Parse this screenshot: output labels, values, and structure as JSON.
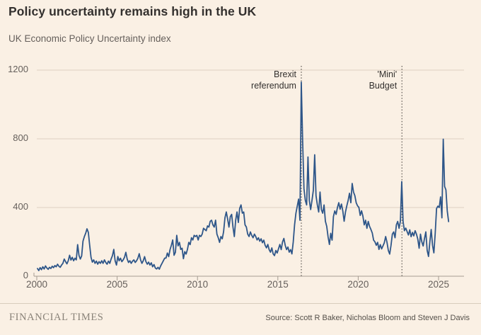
{
  "header": {
    "title": "Policy uncertainty remains high in the UK",
    "subtitle": "UK Economic Policy Uncertainty index"
  },
  "footer": {
    "brand": "FINANCIAL TIMES",
    "source": "Source: Scott R Baker, Nicholas Bloom and Steven J Davis"
  },
  "colors": {
    "background": "#faf0e4",
    "line": "#2e5689",
    "gridline": "#ddd1c2",
    "axis": "#a59c92",
    "annotation_line": "#3a3632",
    "text_primary": "#33302e",
    "text_secondary": "#66605c"
  },
  "chart_data": {
    "type": "line",
    "title": "Policy uncertainty remains high in the UK",
    "subtitle": "UK Economic Policy Uncertainty index",
    "xlabel": "",
    "ylabel": "",
    "ylim": [
      0,
      1200
    ],
    "yticks": [
      0,
      400,
      800,
      1200
    ],
    "xticks": [
      2000,
      2005,
      2010,
      2015,
      2020,
      2025
    ],
    "grid": "horizontal-only",
    "legend": "none",
    "x_start_year": 2000,
    "x_months_per_point": 1,
    "annotations": [
      {
        "label_lines": [
          "Brexit",
          "referendum"
        ],
        "x_year": 2016.46
      },
      {
        "label_lines": [
          "'Mini'",
          "Budget"
        ],
        "x_year": 2022.72
      }
    ],
    "series": [
      {
        "name": "UK Economic Policy Uncertainty index",
        "color": "#2e5689",
        "values": [
          45,
          33,
          50,
          38,
          55,
          42,
          60,
          48,
          40,
          52,
          45,
          58,
          50,
          62,
          55,
          70,
          58,
          52,
          65,
          75,
          100,
          85,
          72,
          90,
          122,
          94,
          110,
          90,
          105,
          95,
          184,
          122,
          100,
          118,
          204,
          230,
          250,
          276,
          255,
          180,
          110,
          82,
          95,
          75,
          88,
          70,
          85,
          75,
          90,
          75,
          95,
          80,
          70,
          88,
          75,
          100,
          120,
          156,
          90,
          65,
          115,
          90,
          105,
          85,
          95,
          110,
          139,
          100,
          80,
          90,
          75,
          88,
          95,
          80,
          90,
          105,
          131,
          95,
          75,
          90,
          114,
          85,
          70,
          82,
          65,
          78,
          55,
          68,
          48,
          42,
          52,
          41,
          60,
          75,
          90,
          105,
          106,
          135,
          114,
          155,
          180,
          211,
          122,
          139,
          238,
          177,
          197,
          156,
          163,
          102,
          143,
          129,
          156,
          197,
          184,
          224,
          211,
          238,
          231,
          238,
          211,
          238,
          231,
          245,
          279,
          272,
          265,
          293,
          286,
          320,
          326,
          299,
          286,
          326,
          245,
          224,
          197,
          231,
          218,
          260,
          340,
          374,
          333,
          286,
          347,
          360,
          286,
          231,
          326,
          374,
          313,
          395,
          415,
          367,
          374,
          299,
          286,
          245,
          231,
          258,
          238,
          224,
          245,
          231,
          211,
          224,
          204,
          218,
          195,
          210,
          180,
          165,
          185,
          155,
          140,
          165,
          130,
          120,
          150,
          135,
          160,
          185,
          155,
          200,
          220,
          180,
          155,
          170,
          140,
          155,
          130,
          200,
          300,
          367,
          408,
          449,
          326,
          1130,
          790,
          510,
          442,
          415,
          694,
          442,
          388,
          442,
          500,
          707,
          469,
          415,
          374,
          490,
          388,
          367,
          415,
          320,
          290,
          230,
          185,
          250,
          210,
          347,
          380,
          360,
          400,
          428,
          390,
          420,
          380,
          320,
          374,
          410,
          442,
          483,
          428,
          540,
          490,
          469,
          428,
          410,
          401,
          354,
          381,
          350,
          299,
          326,
          279,
          319,
          290,
          272,
          252,
          210,
          200,
          180,
          197,
          156,
          184,
          159,
          177,
          195,
          231,
          197,
          150,
          129,
          180,
          245,
          258,
          224,
          299,
          319,
          279,
          320,
          551,
          319,
          265,
          280,
          260,
          240,
          270,
          230,
          255,
          235,
          265,
          245,
          216,
          163,
          245,
          200,
          176,
          220,
          258,
          150,
          115,
          200,
          272,
          180,
          136,
          250,
          394,
          408,
          400,
          462,
          340,
          798,
          523,
          503,
          380,
          318
        ]
      }
    ]
  }
}
